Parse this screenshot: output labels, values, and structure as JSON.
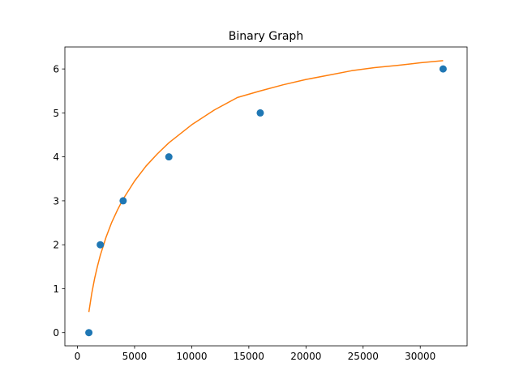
{
  "chart_data": {
    "type": "scatter",
    "title": "Binary Graph",
    "xlabel": "",
    "ylabel": "",
    "xlim": [
      -1100,
      34100
    ],
    "ylim": [
      -0.3,
      6.5
    ],
    "grid": false,
    "x_ticks": [
      0,
      5000,
      10000,
      15000,
      20000,
      25000,
      30000
    ],
    "x_tick_labels": [
      "0",
      "5000",
      "10000",
      "15000",
      "20000",
      "25000",
      "30000"
    ],
    "y_ticks": [
      0,
      1,
      2,
      3,
      4,
      5,
      6
    ],
    "y_tick_labels": [
      "0",
      "1",
      "2",
      "3",
      "4",
      "5",
      "6"
    ],
    "series": [
      {
        "kind": "scatter",
        "color": "#1f77b4",
        "x": [
          1000,
          2000,
          4000,
          8000,
          16000,
          32000
        ],
        "y": [
          0,
          2,
          3,
          4,
          5,
          6
        ]
      },
      {
        "kind": "line",
        "color": "#ff7f0e",
        "x": [
          1000,
          1250,
          1500,
          1750,
          2000,
          2500,
          3000,
          3500,
          4000,
          5000,
          6000,
          7000,
          8000,
          10000,
          12000,
          14000,
          16000,
          18000,
          20000,
          22000,
          24000,
          26000,
          28000,
          30000,
          32000
        ],
        "y": [
          0.47,
          0.89,
          1.23,
          1.51,
          1.76,
          2.17,
          2.51,
          2.79,
          3.04,
          3.45,
          3.79,
          4.07,
          4.32,
          4.73,
          5.07,
          5.35,
          5.5,
          5.64,
          5.76,
          5.86,
          5.96,
          6.03,
          6.08,
          6.14,
          6.19
        ]
      }
    ]
  }
}
